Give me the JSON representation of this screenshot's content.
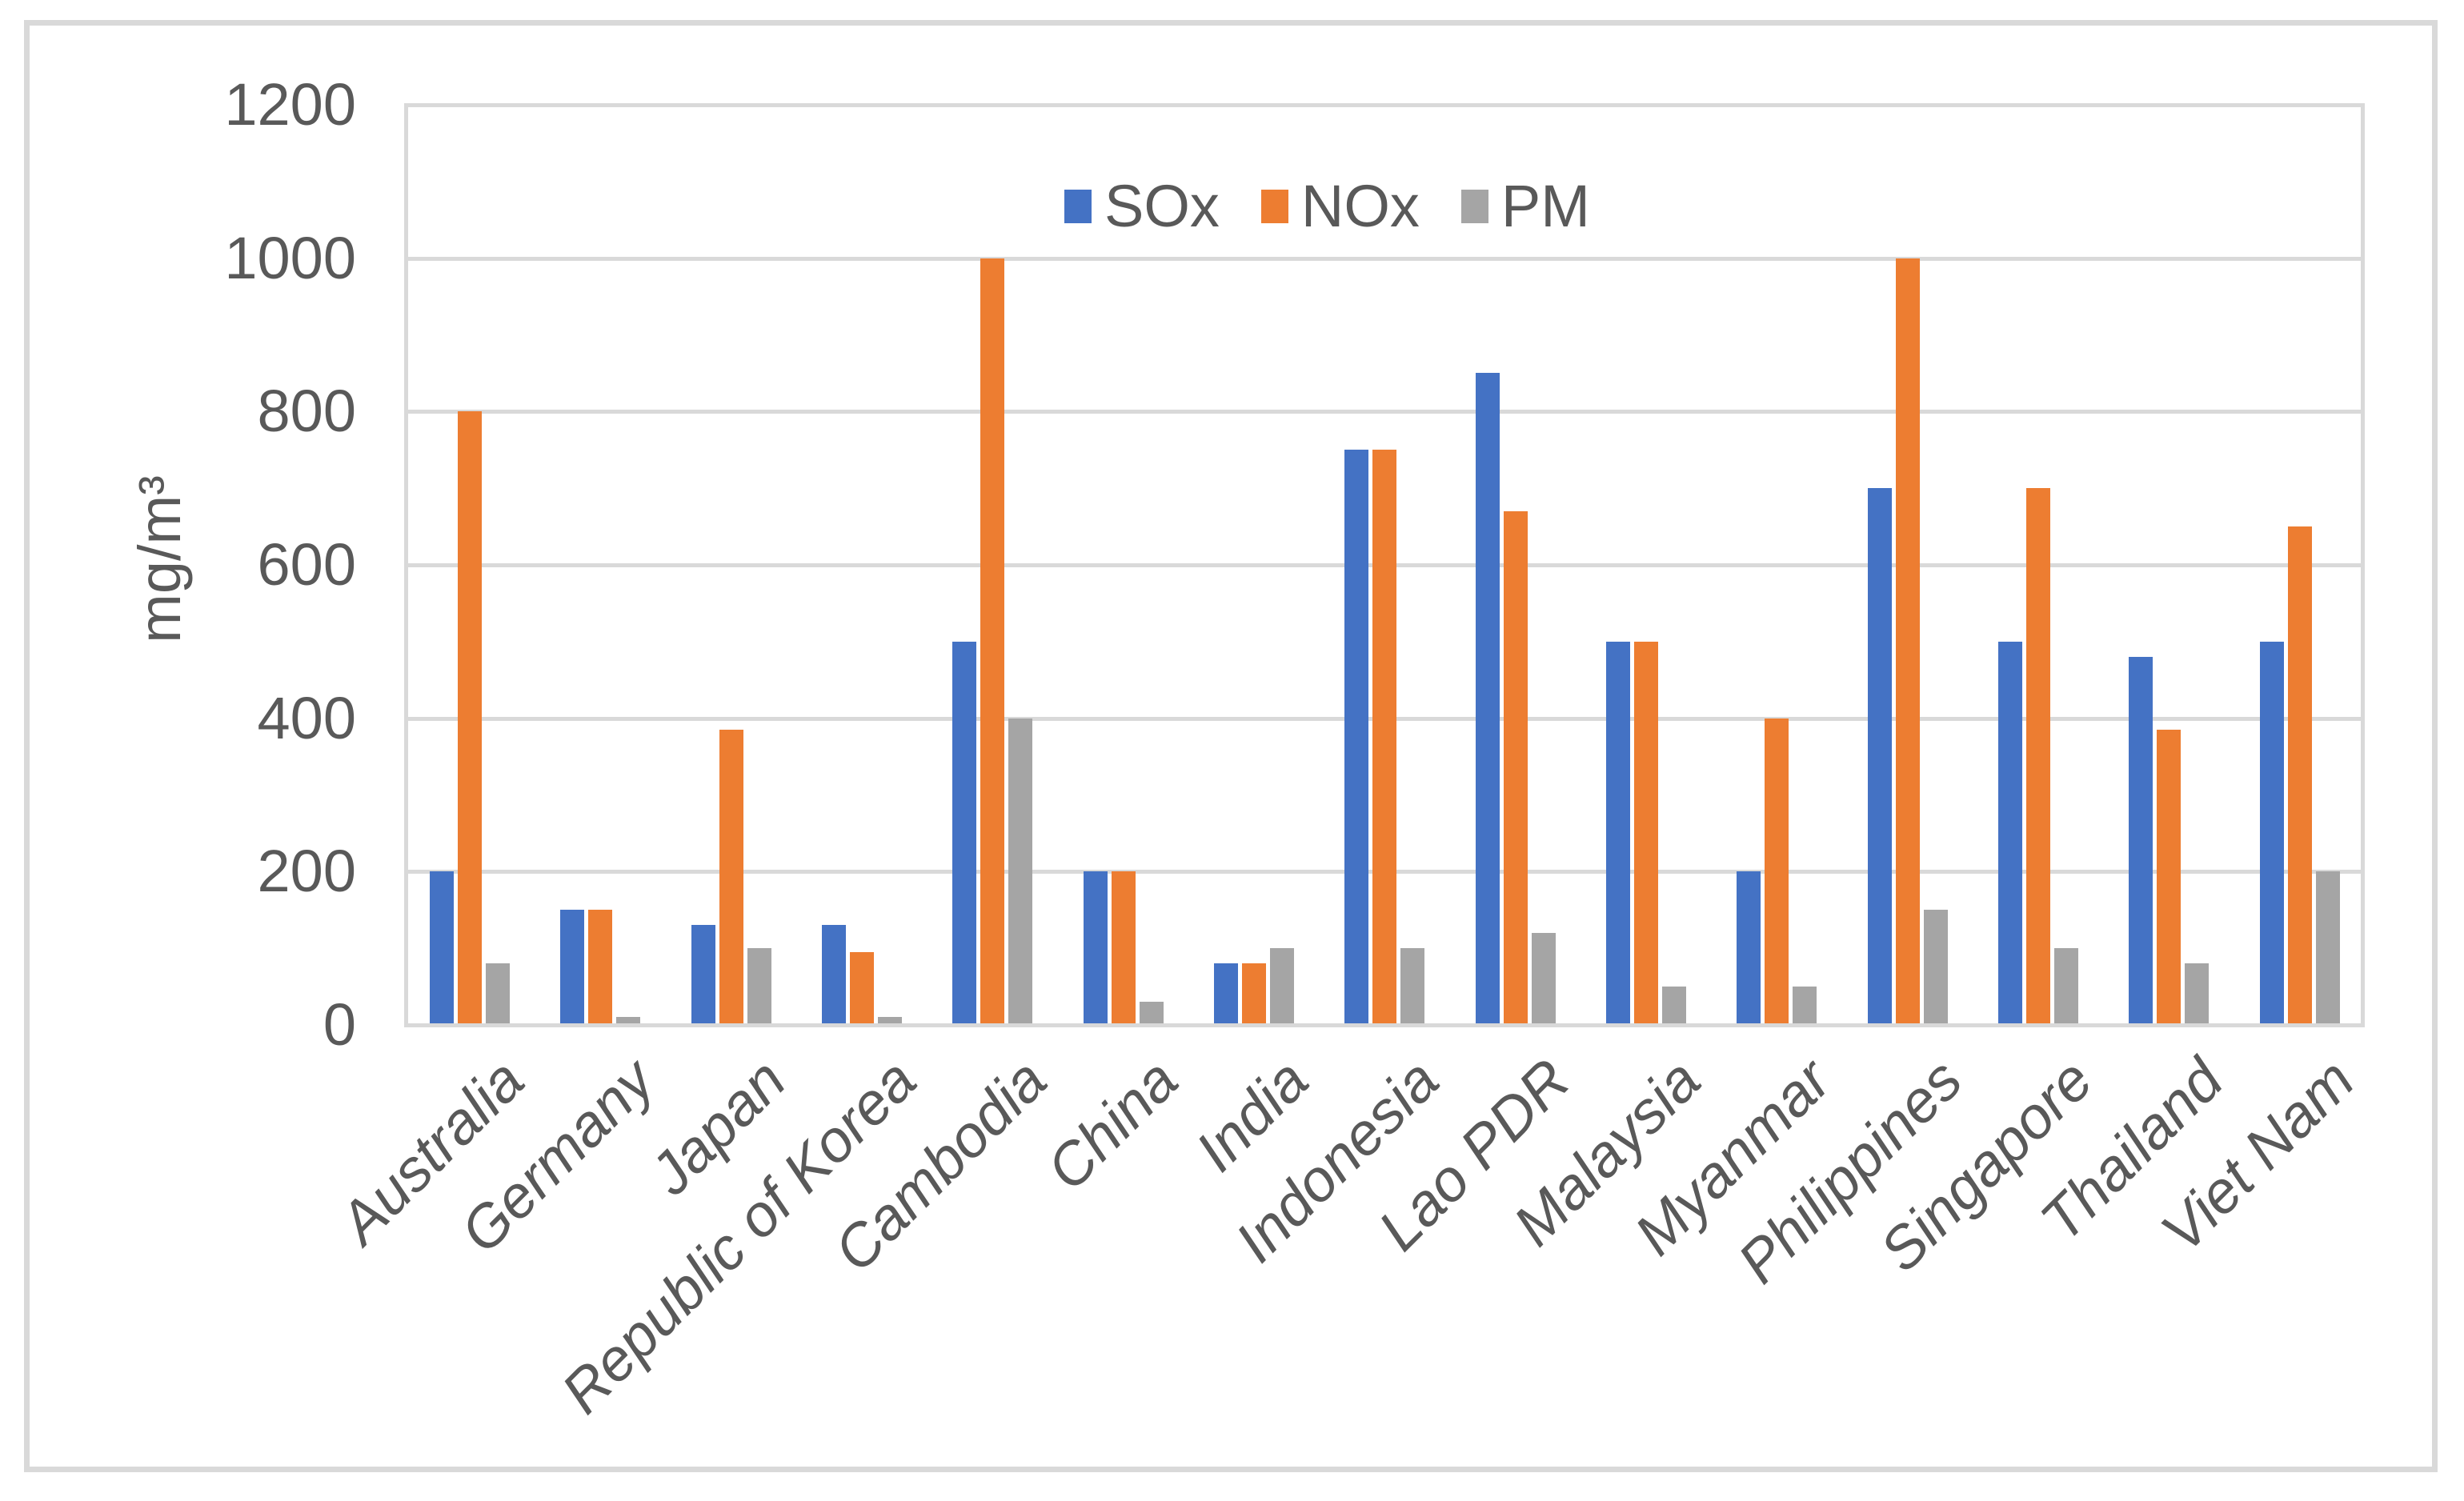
{
  "figure": {
    "background": "#FFFFFF",
    "border_color": "#D9D9D9",
    "text_color": "#595959",
    "gridline_color": "#D9D9D9"
  },
  "chart_data": {
    "type": "bar",
    "title": "",
    "xlabel": "",
    "ylabel": "mg/m³",
    "ylim": [
      0,
      1200
    ],
    "yticks": [
      0,
      200,
      400,
      600,
      800,
      1000,
      1200
    ],
    "grid": true,
    "legend_position": "top-center",
    "categories": [
      "Australia",
      "Germany",
      "Japan",
      "Republic of Korea",
      "Cambodia",
      "China",
      "India",
      "Indonesia",
      "Lao PDR",
      "Malaysia",
      "Myanmar",
      "Philippines",
      "Singapore",
      "Thailand",
      "Viet Nam"
    ],
    "series": [
      {
        "name": "SOx",
        "color": "#4472C4",
        "values": [
          200,
          150,
          130,
          130,
          500,
          200,
          80,
          750,
          850,
          500,
          200,
          700,
          500,
          480,
          500
        ]
      },
      {
        "name": "NOx",
        "color": "#ED7D31",
        "values": [
          800,
          150,
          385,
          95,
          1000,
          200,
          80,
          750,
          670,
          500,
          400,
          1000,
          700,
          385,
          650
        ]
      },
      {
        "name": "PM",
        "color": "#A5A5A5",
        "values": [
          80,
          10,
          100,
          10,
          400,
          30,
          100,
          100,
          120,
          50,
          50,
          150,
          100,
          80,
          200
        ]
      }
    ]
  }
}
